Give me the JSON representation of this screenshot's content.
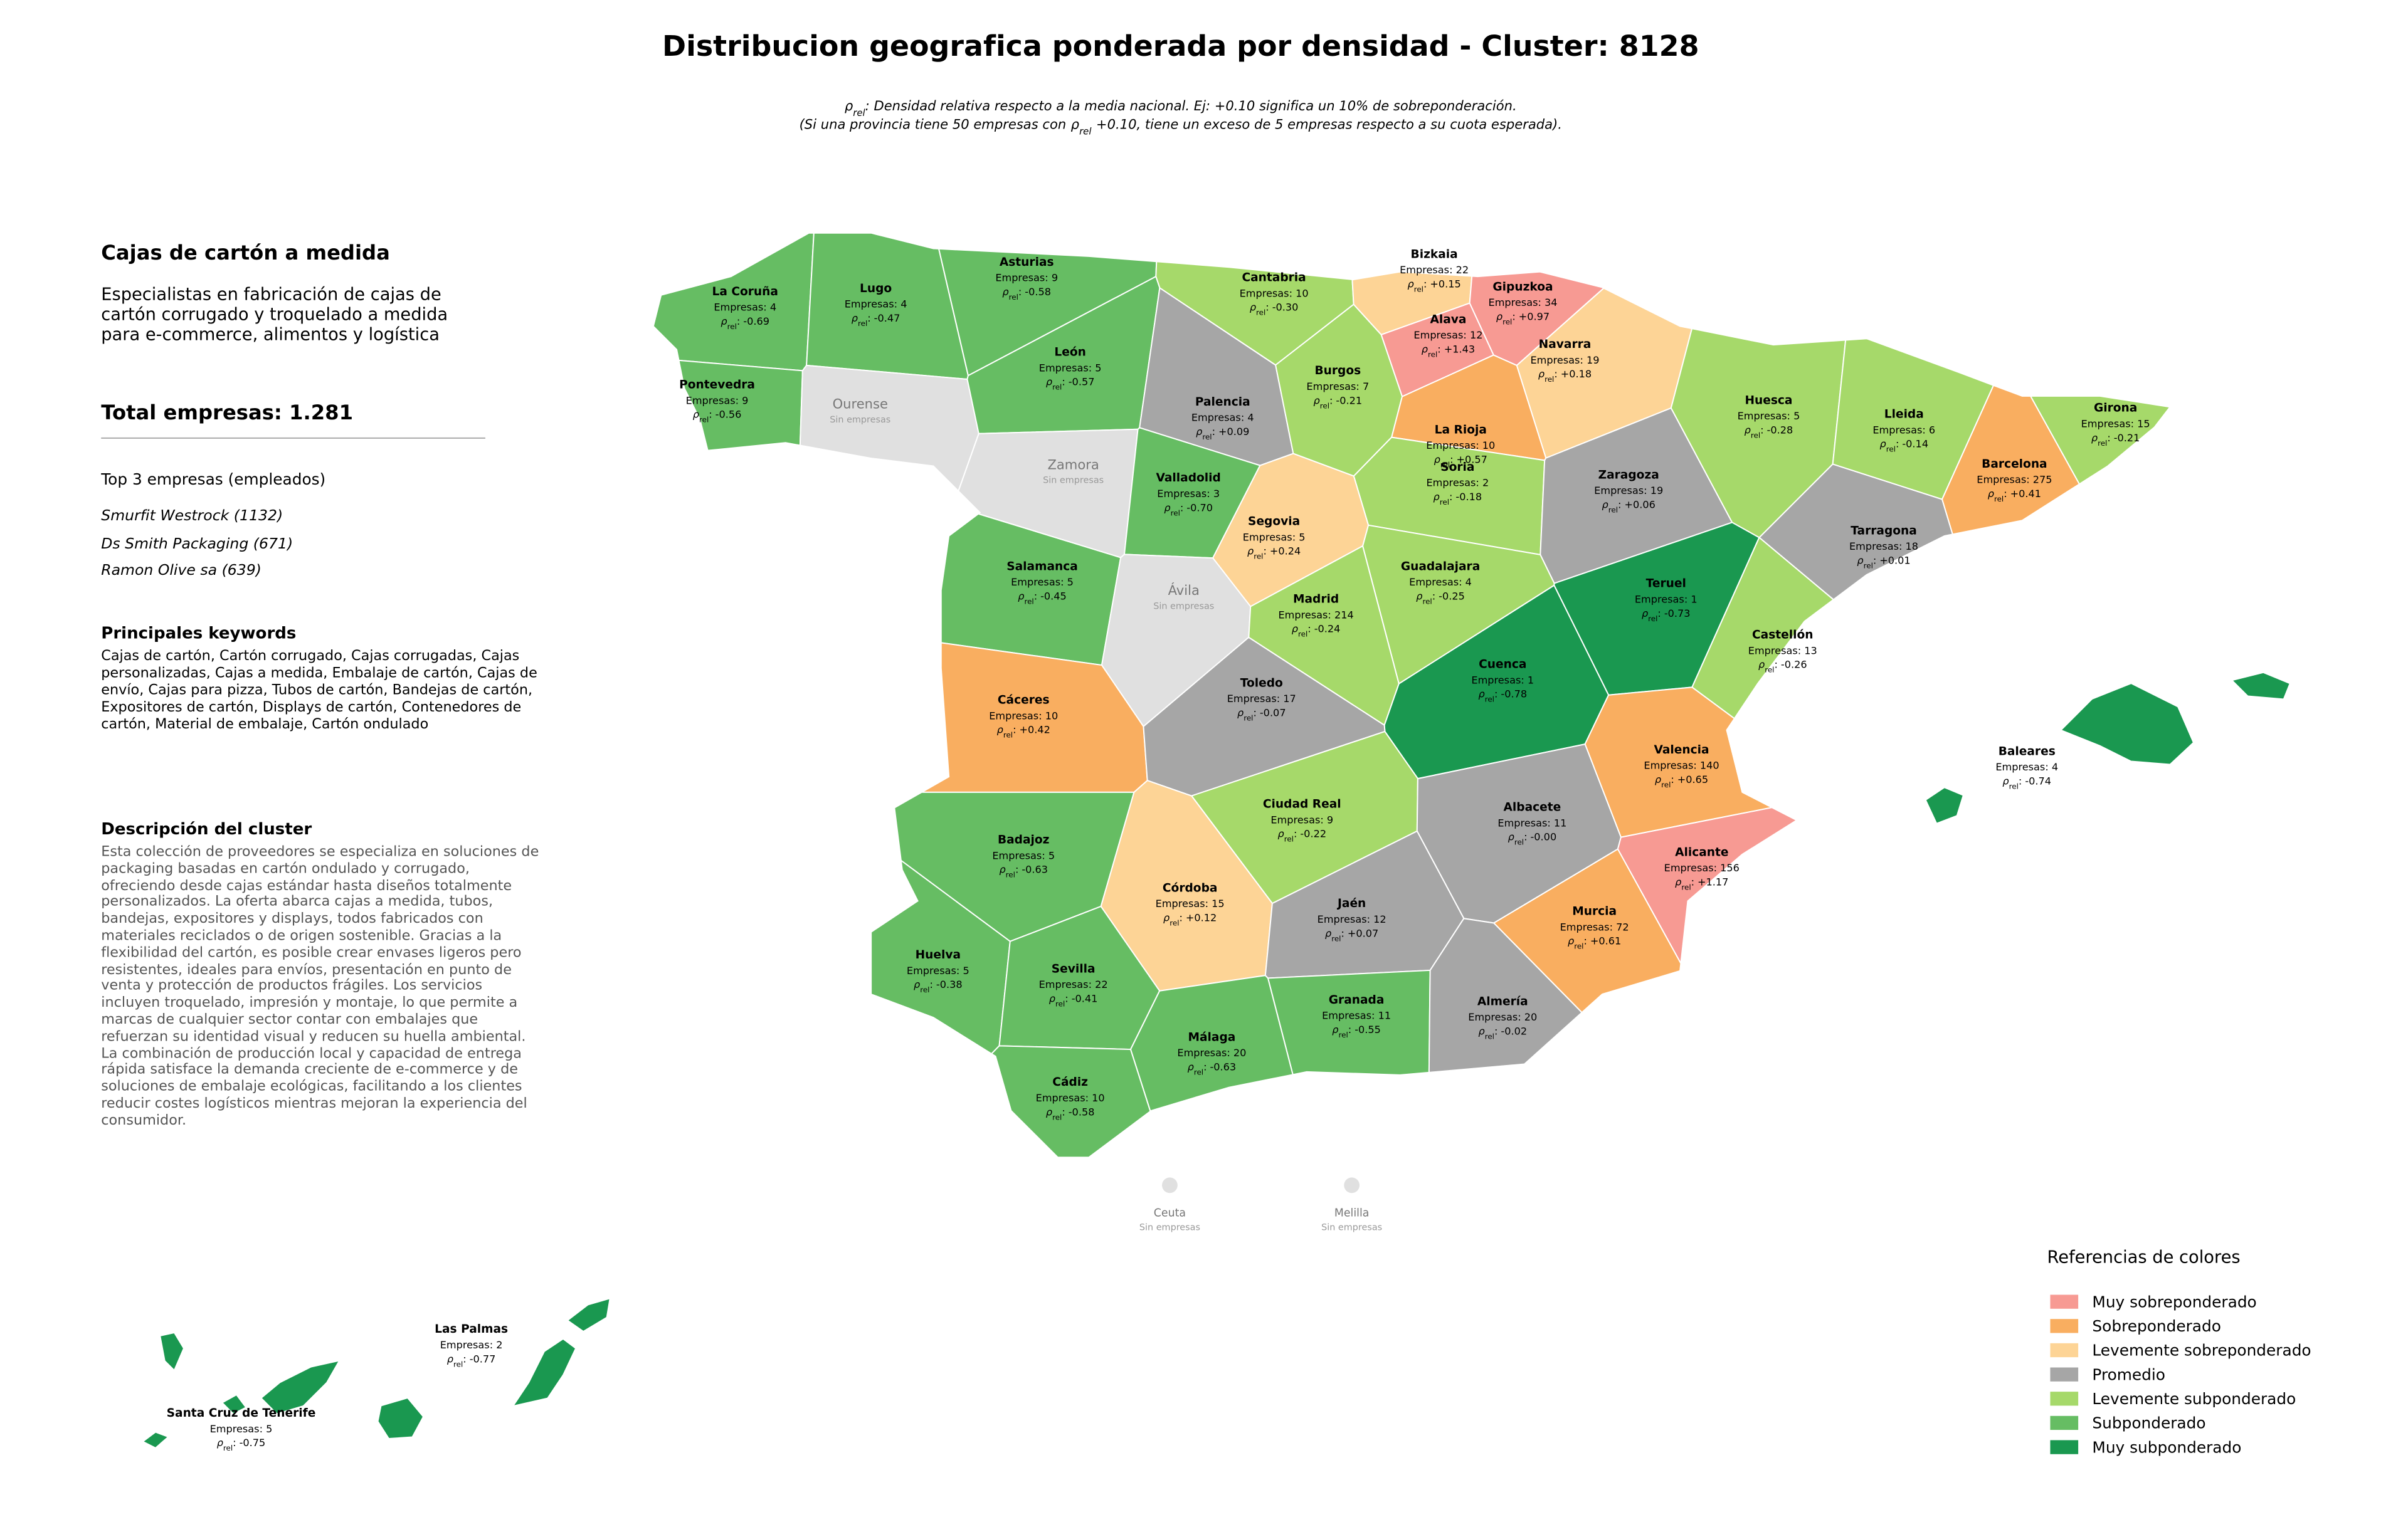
{
  "header": {
    "title": "Distribucion geografica ponderada por densidad - Cluster: 8128",
    "rho_symbol": "ρ",
    "rho_subscript": "rel",
    "rho_separator": ":",
    "subtitle_line1": ": Densidad relativa respecto a la media nacional. Ej: +0.10 significa un 10% de sobreponderación.",
    "subtitle_line2_before": "(Si una provincia tiene 50 empresas con",
    "subtitle_line2_after": "+0.10, tiene un exceso de 5 empresas respecto a su cuota esperada)."
  },
  "panel": {
    "title": "Cajas de cartón a medida",
    "description": "Especialistas en fabricación de cajas de cartón corrugado y troquelado a medida para e-commerce, alimentos y logística",
    "total": "Total empresas: 1.281",
    "top_title": "Top 3 empresas (empleados)",
    "top": [
      "Smurfit Westrock (1132)",
      "Ds Smith Packaging (671)",
      "Ramon Olive sa (639)"
    ],
    "keywords_title": "Principales keywords",
    "keywords": "Cajas de cartón, Cartón corrugado, Cajas corrugadas, Cajas personalizadas, Cajas a medida, Embalaje de cartón, Cajas de envío, Cajas para pizza, Tubos de cartón, Bandejas de cartón, Expositores de cartón, Displays de cartón, Contenedores de cartón, Material de embalaje, Cartón ondulado",
    "cluster_title": "Descripción del cluster",
    "cluster_text": "Esta colección de proveedores se especializa en soluciones de packaging basadas en cartón ondulado y corrugado, ofreciendo desde cajas estándar hasta diseños totalmente personalizados. La oferta abarca cajas a medida, tubos, bandejas, expositores y displays, todos fabricados con materiales reciclados o de origen sostenible. Gracias a la flexibilidad del cartón, es posible crear envases ligeros pero resistentes, ideales para envíos, presentación en punto de venta y protección de productos frágiles. Los servicios incluyen troquelado, impresión y montaje, lo que permite a marcas de cualquier sector contar con embalajes que refuerzan su identidad visual y reducen su huella ambiental. La combinación de producción local y capacidad de entrega rápida satisface la demanda creciente de e-commerce y de soluciones de embalaje ecológicas, facilitando a los clientes reducir costes logísticos mientras mejoran la experiencia del consumidor."
  },
  "map": {
    "no_companies_label": "Sin empresas",
    "provinces": [
      {
        "name": "La Coruña",
        "empresas": "Empresas: 4",
        "rho": "-0.69",
        "color": "#66bd63"
      },
      {
        "name": "Lugo",
        "empresas": "Empresas: 4",
        "rho": "-0.47",
        "color": "#66bd63"
      },
      {
        "name": "Asturias",
        "empresas": "Empresas: 9",
        "rho": "-0.58",
        "color": "#66bd63"
      },
      {
        "name": "Cantabria",
        "empresas": "Empresas: 10",
        "rho": "-0.30",
        "color": "#a6d96a"
      },
      {
        "name": "Bizkaia",
        "empresas": "Empresas: 22",
        "rho": "+0.15",
        "color": "#fdd496"
      },
      {
        "name": "Gipuzkoa",
        "empresas": "Empresas: 34",
        "rho": "+0.97",
        "color": "#f79a93"
      },
      {
        "name": "Alava",
        "empresas": "Empresas: 12",
        "rho": "+1.43",
        "color": "#f79a93"
      },
      {
        "name": "Navarra",
        "empresas": "Empresas: 19",
        "rho": "+0.18",
        "color": "#fdd496"
      },
      {
        "name": "Pontevedra",
        "empresas": "Empresas: 9",
        "rho": "-0.56",
        "color": "#66bd63"
      },
      {
        "name": "Ourense",
        "color": "#e0e0e0"
      },
      {
        "name": "León",
        "empresas": "Empresas: 5",
        "rho": "-0.57",
        "color": "#66bd63"
      },
      {
        "name": "Palencia",
        "empresas": "Empresas: 4",
        "rho": "+0.09",
        "color": "#a6a6a6"
      },
      {
        "name": "Burgos",
        "empresas": "Empresas: 7",
        "rho": "-0.21",
        "color": "#a6d96a"
      },
      {
        "name": "La Rioja",
        "empresas": "Empresas: 10",
        "rho": "+0.57",
        "color": "#f9ae60"
      },
      {
        "name": "Huesca",
        "empresas": "Empresas: 5",
        "rho": "-0.28",
        "color": "#a6d96a"
      },
      {
        "name": "Lleida",
        "empresas": "Empresas: 6",
        "rho": "-0.14",
        "color": "#a6d96a"
      },
      {
        "name": "Girona",
        "empresas": "Empresas: 15",
        "rho": "-0.21",
        "color": "#a6d96a"
      },
      {
        "name": "Barcelona",
        "empresas": "Empresas: 275",
        "rho": "+0.41",
        "color": "#f9ae60"
      },
      {
        "name": "Zamora",
        "color": "#e0e0e0"
      },
      {
        "name": "Valladolid",
        "empresas": "Empresas: 3",
        "rho": "-0.70",
        "color": "#66bd63"
      },
      {
        "name": "Soria",
        "empresas": "Empresas: 2",
        "rho": "-0.18",
        "color": "#a6d96a"
      },
      {
        "name": "Zaragoza",
        "empresas": "Empresas: 19",
        "rho": "+0.06",
        "color": "#a6a6a6"
      },
      {
        "name": "Segovia",
        "empresas": "Empresas: 5",
        "rho": "+0.24",
        "color": "#fdd496"
      },
      {
        "name": "Tarragona",
        "empresas": "Empresas: 18",
        "rho": "+0.01",
        "color": "#a6a6a6"
      },
      {
        "name": "Salamanca",
        "empresas": "Empresas: 5",
        "rho": "-0.45",
        "color": "#66bd63"
      },
      {
        "name": "Guadalajara",
        "empresas": "Empresas: 4",
        "rho": "-0.25",
        "color": "#a6d96a"
      },
      {
        "name": "Ávila",
        "color": "#e0e0e0"
      },
      {
        "name": "Madrid",
        "empresas": "Empresas: 214",
        "rho": "-0.24",
        "color": "#a6d96a"
      },
      {
        "name": "Teruel",
        "empresas": "Empresas: 1",
        "rho": "-0.73",
        "color": "#1a9850"
      },
      {
        "name": "Castellón",
        "empresas": "Empresas: 13",
        "rho": "-0.26",
        "color": "#a6d96a"
      },
      {
        "name": "Cuenca",
        "empresas": "Empresas: 1",
        "rho": "-0.78",
        "color": "#1a9850"
      },
      {
        "name": "Cáceres",
        "empresas": "Empresas: 10",
        "rho": "+0.42",
        "color": "#f9ae60"
      },
      {
        "name": "Toledo",
        "empresas": "Empresas: 17",
        "rho": "-0.07",
        "color": "#a6a6a6"
      },
      {
        "name": "Valencia",
        "empresas": "Empresas: 140",
        "rho": "+0.65",
        "color": "#f9ae60"
      },
      {
        "name": "Ciudad Real",
        "empresas": "Empresas: 9",
        "rho": "-0.22",
        "color": "#a6d96a"
      },
      {
        "name": "Albacete",
        "empresas": "Empresas: 11",
        "rho": "-0.00",
        "color": "#a6a6a6"
      },
      {
        "name": "Badajoz",
        "empresas": "Empresas: 5",
        "rho": "-0.63",
        "color": "#66bd63"
      },
      {
        "name": "Alicante",
        "empresas": "Empresas: 156",
        "rho": "+1.17",
        "color": "#f79a93"
      },
      {
        "name": "Córdoba",
        "empresas": "Empresas: 15",
        "rho": "+0.12",
        "color": "#fdd496"
      },
      {
        "name": "Jaén",
        "empresas": "Empresas: 12",
        "rho": "+0.07",
        "color": "#a6a6a6"
      },
      {
        "name": "Murcia",
        "empresas": "Empresas: 72",
        "rho": "+0.61",
        "color": "#f9ae60"
      },
      {
        "name": "Huelva",
        "empresas": "Empresas: 5",
        "rho": "-0.38",
        "color": "#66bd63"
      },
      {
        "name": "Sevilla",
        "empresas": "Empresas: 22",
        "rho": "-0.41",
        "color": "#66bd63"
      },
      {
        "name": "Granada",
        "empresas": "Empresas: 11",
        "rho": "-0.55",
        "color": "#66bd63"
      },
      {
        "name": "Almería",
        "empresas": "Empresas: 20",
        "rho": "-0.02",
        "color": "#a6a6a6"
      },
      {
        "name": "Málaga",
        "empresas": "Empresas: 20",
        "rho": "-0.63",
        "color": "#66bd63"
      },
      {
        "name": "Cádiz",
        "empresas": "Empresas: 10",
        "rho": "-0.58",
        "color": "#66bd63"
      },
      {
        "name": "Baleares",
        "empresas": "Empresas: 4",
        "rho": "-0.74",
        "color": "#1a9850"
      },
      {
        "name": "Las Palmas",
        "empresas": "Empresas: 2",
        "rho": "-0.77",
        "color": "#1a9850"
      },
      {
        "name": "Santa Cruz de Tenerife",
        "empresas": "Empresas: 5",
        "rho": "-0.75",
        "color": "#1a9850"
      },
      {
        "name": "Ceuta",
        "color": "#e0e0e0"
      },
      {
        "name": "Melilla",
        "color": "#e0e0e0"
      }
    ]
  },
  "legend": {
    "title": "Referencias de colores",
    "items": [
      {
        "label": "Muy sobreponderado",
        "color": "#f79a93"
      },
      {
        "label": "Sobreponderado",
        "color": "#f9ae60"
      },
      {
        "label": "Levemente sobreponderado",
        "color": "#fdd496"
      },
      {
        "label": "Promedio",
        "color": "#a6a6a6"
      },
      {
        "label": "Levemente subponderado",
        "color": "#a6d96a"
      },
      {
        "label": "Subponderado",
        "color": "#66bd63"
      },
      {
        "label": "Muy subponderado",
        "color": "#1a9850"
      }
    ]
  }
}
